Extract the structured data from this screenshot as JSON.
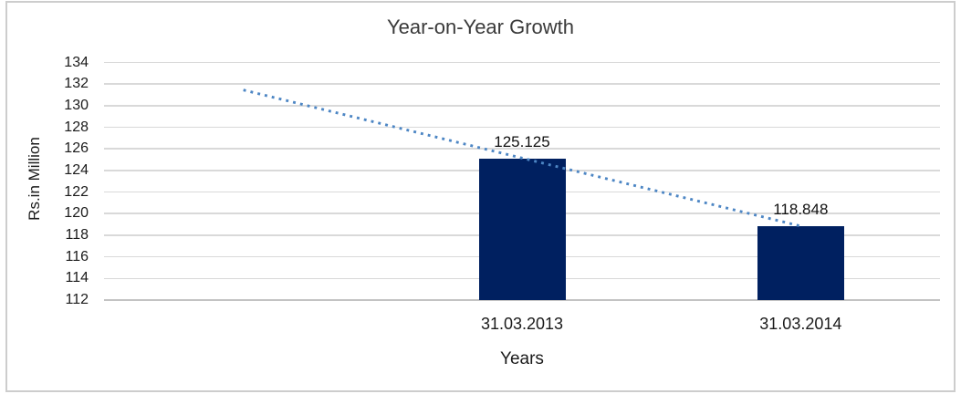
{
  "chart_data": {
    "type": "bar",
    "title": "Year-on-Year Growth",
    "xlabel": "Years",
    "ylabel": "Rs.in Million",
    "categories": [
      "",
      "31.03.2013",
      "31.03.2014"
    ],
    "values": [
      null,
      125.125,
      118.848
    ],
    "data_labels": [
      "",
      "125.125",
      "118.848"
    ],
    "ylim": [
      112,
      134
    ],
    "ytick_step": 2,
    "grid": true,
    "legend": "none",
    "bar_color": "#002060",
    "gridline_color": "#d9d9d9",
    "axis_line_color": "#c3c3c3",
    "text_color": "#1b1b1b",
    "trendline": {
      "style": "dotted",
      "color": "#4d86c4",
      "points": [
        {
          "category_index": 0,
          "value": 131.45
        },
        {
          "category_index": 2,
          "value": 118.848
        }
      ]
    }
  }
}
